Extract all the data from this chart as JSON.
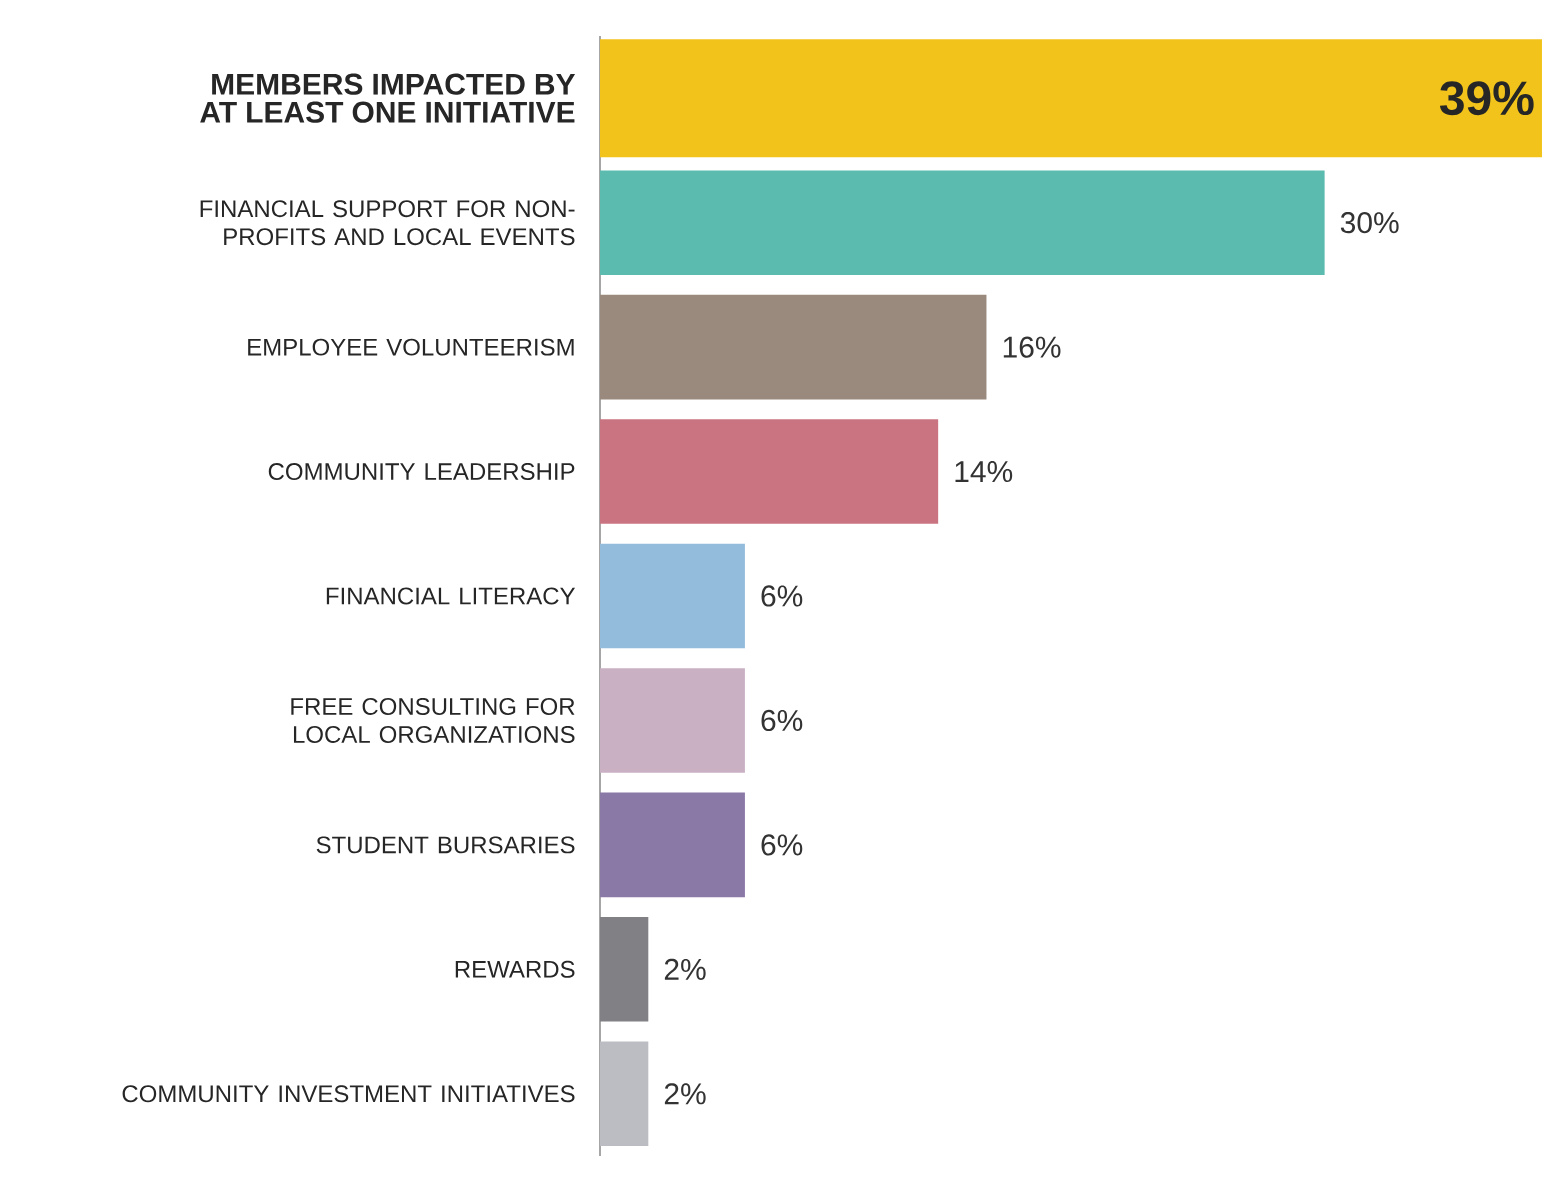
{
  "chart_data": {
    "type": "bar",
    "orientation": "horizontal",
    "categories": [
      "MEMBERS IMPACTED BY AT LEAST ONE INITIATIVE",
      "FINANCIAL SUPPORT FOR NON-PROFITS AND LOCAL EVENTS",
      "EMPLOYEE VOLUNTEERISM",
      "COMMUNITY LEADERSHIP",
      "FINANCIAL LITERACY",
      "FREE CONSULTING FOR LOCAL ORGANIZATIONS",
      "STUDENT BURSARIES",
      "REWARDS",
      "COMMUNITY INVESTMENT INITIATIVES"
    ],
    "values": [
      39,
      30,
      16,
      14,
      6,
      6,
      6,
      2,
      2
    ],
    "colors": [
      "#f2c31b",
      "#5bbbaf",
      "#9a8a7e",
      "#c97480",
      "#93bcdc",
      "#c9b0c3",
      "#8a78a6",
      "#808085",
      "#bcbdc2"
    ],
    "value_labels": [
      "39%",
      "30%",
      "16%",
      "14%",
      "6%",
      "6%",
      "6%",
      "2%",
      "2%"
    ],
    "xlim": [
      0,
      39
    ]
  }
}
